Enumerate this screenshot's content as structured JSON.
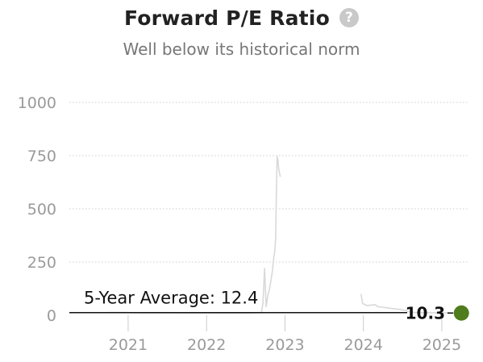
{
  "header": {
    "title": "Forward P/E Ratio",
    "subtitle": "Well below its historical norm",
    "help_icon": "question-circle-icon"
  },
  "chart_data": {
    "type": "line",
    "title": "Forward P/E Ratio",
    "subtitle": "Well below its historical norm",
    "xlabel": "",
    "ylabel": "",
    "xlim": [
      2020.25,
      2025.33
    ],
    "ylim": [
      0,
      1000
    ],
    "yticks": [
      0,
      250,
      500,
      750,
      1000
    ],
    "xticks": [
      2021,
      2022,
      2023,
      2024,
      2025
    ],
    "grid": true,
    "series": [
      {
        "color": "#d9d9d9",
        "points": [
          [
            2020.75,
            13
          ],
          [
            2020.95,
            13
          ],
          [
            2021.05,
            12
          ],
          [
            2021.2,
            11
          ],
          [
            2022.2,
            10
          ],
          [
            2022.5,
            10
          ],
          [
            2022.7,
            12
          ],
          [
            2022.72,
            60
          ],
          [
            2022.74,
            220
          ],
          [
            2022.76,
            40
          ],
          [
            2022.78,
            90
          ],
          [
            2022.8,
            120
          ],
          [
            2022.82,
            160
          ],
          [
            2022.84,
            210
          ],
          [
            2022.86,
            280
          ],
          [
            2022.87,
            300
          ],
          [
            2022.88,
            360
          ],
          [
            2022.89,
            560
          ],
          [
            2022.9,
            745
          ],
          [
            2022.91,
            730
          ],
          [
            2022.92,
            690
          ],
          [
            2022.93,
            670
          ],
          [
            2022.94,
            650
          ]
        ]
      },
      {
        "color": "#d9d9d9",
        "points": [
          [
            2023.97,
            100
          ],
          [
            2023.99,
            55
          ],
          [
            2024.05,
            45
          ],
          [
            2024.15,
            50
          ],
          [
            2024.18,
            40
          ],
          [
            2024.25,
            38
          ],
          [
            2024.3,
            35
          ],
          [
            2024.4,
            30
          ],
          [
            2024.45,
            28
          ],
          [
            2024.5,
            25
          ],
          [
            2024.55,
            22
          ],
          [
            2024.57,
            17
          ],
          [
            2024.65,
            13
          ],
          [
            2024.75,
            12
          ],
          [
            2025.05,
            11
          ],
          [
            2025.25,
            10.3
          ]
        ]
      }
    ],
    "average": {
      "value": 12.4,
      "label": "5-Year Average: 12.4",
      "color": "#111111"
    },
    "current": {
      "x": 2025.25,
      "value": 10.3,
      "label": "10.3",
      "color": "#4f7d1e"
    }
  }
}
